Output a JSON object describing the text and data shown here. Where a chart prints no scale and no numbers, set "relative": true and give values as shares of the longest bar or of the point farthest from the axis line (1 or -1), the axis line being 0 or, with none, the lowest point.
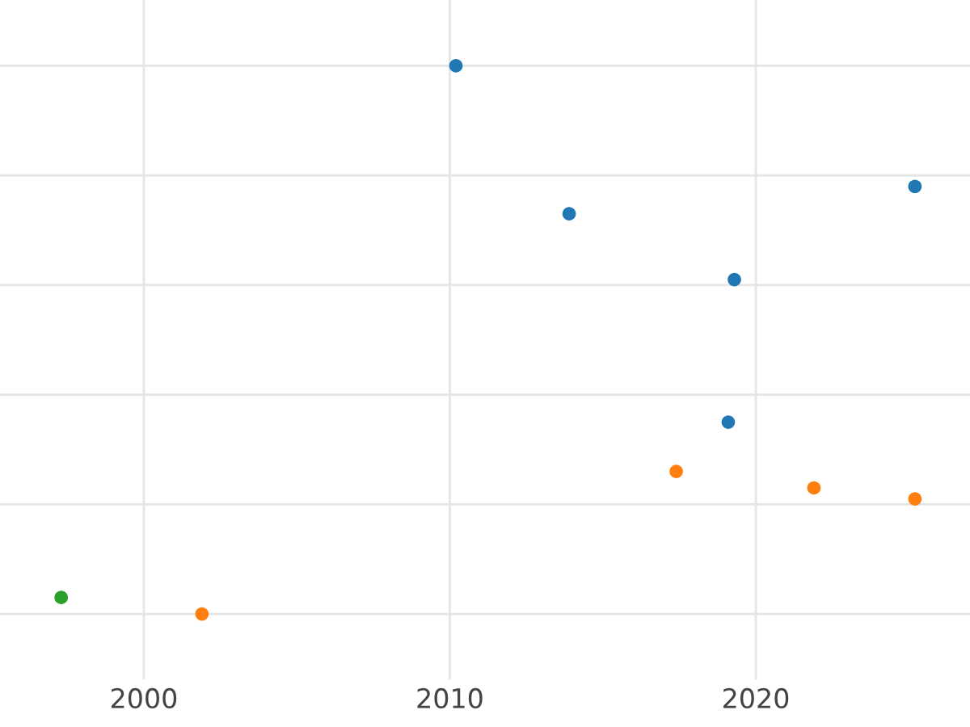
{
  "chart_data": {
    "type": "scatter",
    "relative": true,
    "xlim": [
      1995.3,
      2027.0
    ],
    "xticks": [
      2000,
      2010,
      2020
    ],
    "grid": true,
    "tick_labels": "x",
    "marker": "circle",
    "series": [
      {
        "color": "#1f77b4",
        "x": [
          2010.2,
          2013.9,
          2025.2,
          2019.3,
          2019.1
        ],
        "values": [
          1,
          0.73,
          0.78,
          0.61,
          0.35
        ]
      },
      {
        "color": "#ff7f0e",
        "x": [
          2017.4,
          2021.9,
          2025.2,
          2001.9
        ],
        "values": [
          0.26,
          0.23,
          0.21,
          0
        ]
      },
      {
        "color": "#2ca02c",
        "x": [
          1997.3
        ],
        "values": [
          0.03
        ]
      }
    ]
  }
}
